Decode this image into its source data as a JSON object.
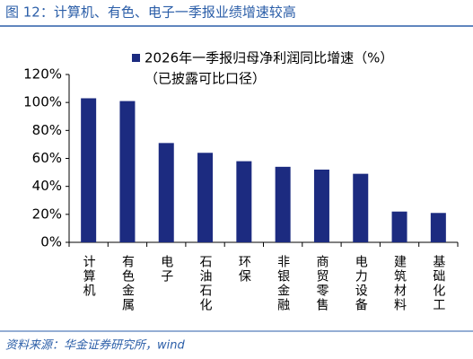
{
  "chart_data": {
    "type": "bar",
    "title": "图 12：计算机、有色、电子一季报业绩增速较高",
    "categories": [
      "计算机",
      "有色金属",
      "电子",
      "石油石化",
      "环保",
      "非银金融",
      "商贸零售",
      "电力设备",
      "建筑材料",
      "基础化工"
    ],
    "series": [
      {
        "name": "2026年一季报归母净利润同比增速（%）",
        "color": "#1c2b80",
        "values": [
          103,
          101,
          71,
          64,
          58,
          54,
          52,
          49,
          22,
          21
        ]
      }
    ],
    "legend_note": "（已披露可比口径）",
    "ylim": [
      0,
      120
    ],
    "yticks": [
      {
        "value": 0,
        "label": "0%"
      },
      {
        "value": 20,
        "label": "20%"
      },
      {
        "value": 40,
        "label": "40%"
      },
      {
        "value": 60,
        "label": "60%"
      },
      {
        "value": 80,
        "label": "80%"
      },
      {
        "value": 100,
        "label": "100%"
      },
      {
        "value": 120,
        "label": "120%"
      }
    ],
    "source": "资料来源：华金证券研究所，wind"
  }
}
